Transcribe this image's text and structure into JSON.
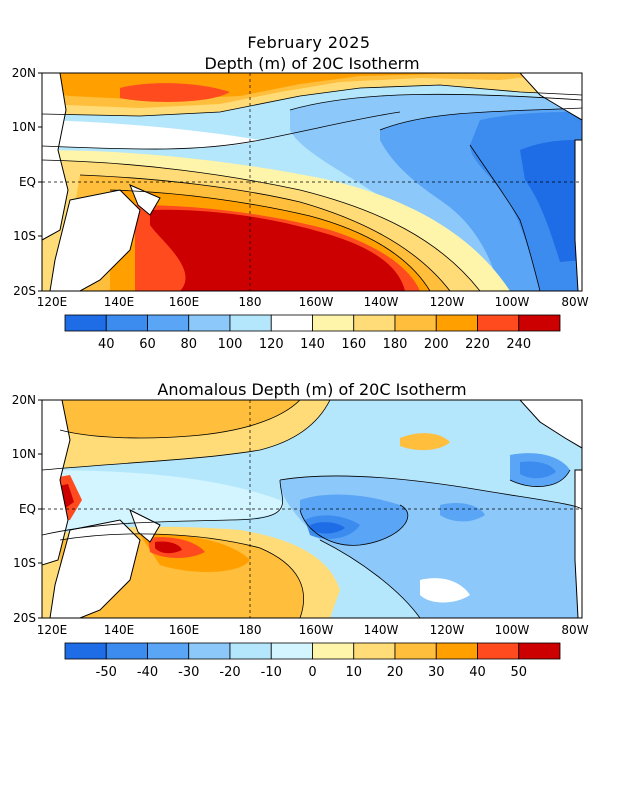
{
  "figure": {
    "date_title": "February 2025",
    "panel1_title": "Depth (m) of 20C Isotherm",
    "panel2_title": "Anomalous Depth (m) of 20C Isotherm"
  },
  "axes": {
    "lat_labels": [
      "20N",
      "10N",
      "EQ",
      "10S",
      "20S"
    ],
    "lon_labels": [
      "120E",
      "140E",
      "160E",
      "180",
      "160W",
      "140W",
      "120W",
      "100W",
      "80W"
    ]
  },
  "colorbar1": {
    "colors": [
      "#1e6ce6",
      "#3c8cf0",
      "#5aa5f5",
      "#8cc8fa",
      "#b4e6fc",
      "#ffffff",
      "#fff5aa",
      "#ffdc78",
      "#ffbe3c",
      "#ffa000",
      "#ff4b1e",
      "#cc0000"
    ],
    "labels": [
      "40",
      "60",
      "80",
      "100",
      "120",
      "140",
      "160",
      "180",
      "200",
      "220",
      "240"
    ]
  },
  "colorbar2": {
    "colors": [
      "#1e6ce6",
      "#3c8cf0",
      "#5aa5f5",
      "#8cc8fa",
      "#b4e6fc",
      "#d2f5ff",
      "#fff5aa",
      "#ffdc78",
      "#ffbe3c",
      "#ffa000",
      "#ff4b1e",
      "#cc0000"
    ],
    "labels": [
      "-50",
      "-40",
      "-30",
      "-20",
      "-10",
      "0",
      "10",
      "20",
      "30",
      "40",
      "50"
    ]
  }
}
